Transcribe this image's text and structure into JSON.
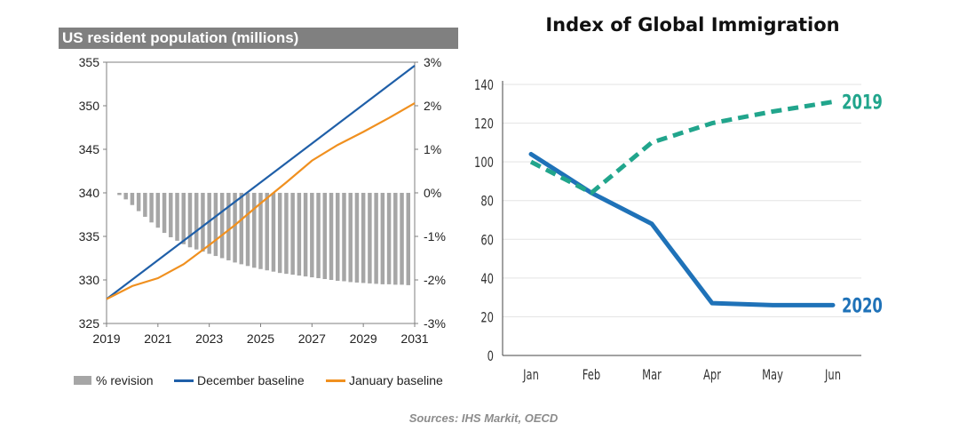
{
  "source_note": "Sources: IHS Markit, OECD",
  "colors": {
    "december": "#1f5fa8",
    "january": "#f0901f",
    "revision": "#a6a6a6",
    "series_2019": "#21a58c",
    "series_2020": "#1f72b8"
  },
  "chart_data": [
    {
      "type": "bar",
      "title": "US resident population (millions)",
      "x_ticks": [
        "2019",
        "2021",
        "2023",
        "2025",
        "2027",
        "2029",
        "2031"
      ],
      "x_range": [
        2019,
        2031
      ],
      "y_left_ticks": [
        "355",
        "350",
        "345",
        "340",
        "335",
        "330",
        "325"
      ],
      "y_left_range": [
        325,
        355
      ],
      "y_right_ticks": [
        "3%",
        "2%",
        "1%",
        "0%",
        "-1%",
        "-2%",
        "-3%"
      ],
      "y_right_range": [
        -3,
        3
      ],
      "grid": false,
      "legend_position": "bottom",
      "series": [
        {
          "name": "% revision",
          "type": "bar",
          "axis": "right",
          "x": [
            2019.5,
            2019.75,
            2020.0,
            2020.25,
            2020.5,
            2020.75,
            2021.0,
            2021.25,
            2021.5,
            2021.75,
            2022.0,
            2022.25,
            2022.5,
            2022.75,
            2023.0,
            2023.25,
            2023.5,
            2023.75,
            2024.0,
            2024.25,
            2024.5,
            2024.75,
            2025.0,
            2025.25,
            2025.5,
            2025.75,
            2026.0,
            2026.25,
            2026.5,
            2026.75,
            2027.0,
            2027.25,
            2027.5,
            2027.75,
            2028.0,
            2028.25,
            2028.5,
            2028.75,
            2029.0,
            2029.25,
            2029.5,
            2029.75,
            2030.0,
            2030.25,
            2030.5,
            2030.75
          ],
          "values": [
            -0.05,
            -0.15,
            -0.28,
            -0.42,
            -0.55,
            -0.68,
            -0.8,
            -0.92,
            -1.02,
            -1.1,
            -1.18,
            -1.25,
            -1.3,
            -1.35,
            -1.4,
            -1.45,
            -1.5,
            -1.55,
            -1.6,
            -1.64,
            -1.68,
            -1.72,
            -1.75,
            -1.78,
            -1.81,
            -1.84,
            -1.86,
            -1.88,
            -1.9,
            -1.92,
            -1.94,
            -1.96,
            -1.98,
            -2.0,
            -2.02,
            -2.03,
            -2.05,
            -2.06,
            -2.07,
            -2.08,
            -2.09,
            -2.1,
            -2.1,
            -2.11,
            -2.11,
            -2.12
          ]
        },
        {
          "name": "December baseline",
          "type": "line",
          "axis": "left",
          "x": [
            2019,
            2031
          ],
          "values": [
            327.8,
            354.6
          ]
        },
        {
          "name": "January baseline",
          "type": "line",
          "axis": "left",
          "x": [
            2019,
            2020,
            2021,
            2022,
            2023,
            2024,
            2025,
            2026,
            2027,
            2028,
            2029,
            2030,
            2031
          ],
          "values": [
            327.8,
            329.3,
            330.2,
            331.8,
            334.0,
            336.3,
            338.8,
            341.2,
            343.7,
            345.5,
            347.0,
            348.6,
            350.3
          ]
        }
      ]
    },
    {
      "type": "line",
      "title": "Index of Global Immigration",
      "categories": [
        "Jan",
        "Feb",
        "Mar",
        "Apr",
        "May",
        "Jun"
      ],
      "y_ticks": [
        "140",
        "120",
        "100",
        "80",
        "60",
        "40",
        "20",
        "0"
      ],
      "ylim": [
        0,
        140
      ],
      "grid": true,
      "series": [
        {
          "name": "2019",
          "values": [
            100,
            84,
            110,
            120,
            126,
            131
          ]
        },
        {
          "name": "2020",
          "values": [
            104,
            84,
            68,
            27,
            26,
            26
          ]
        }
      ]
    }
  ]
}
